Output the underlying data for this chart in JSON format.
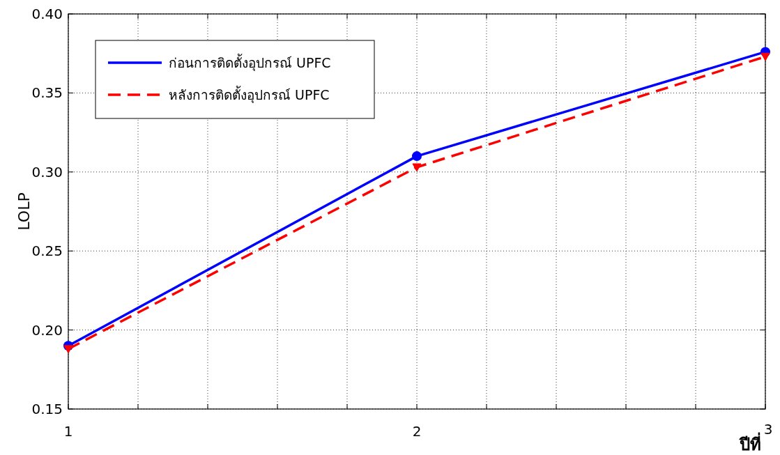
{
  "chart_data": {
    "type": "line",
    "xlabel": "ปีที่",
    "ylabel": "LOLP",
    "x": [
      1,
      2,
      3
    ],
    "series": [
      {
        "name": "ก่อนการติดตั้งอุปกรณ์ UPFC",
        "color": "#0000ff",
        "values": [
          0.19,
          0.31,
          0.376
        ],
        "marker": "circle",
        "line_style": "solid"
      },
      {
        "name": "หลังการติดตั้งอุปกรณ์ UPFC",
        "color": "#ff0000",
        "values": [
          0.188,
          0.303,
          0.373
        ],
        "marker": "triangle",
        "line_style": "dashed"
      }
    ],
    "xlim": [
      1,
      3
    ],
    "xticks": [
      1,
      {
        "value": 1.2,
        "label": null
      },
      {
        "value": 1.4,
        "label": null
      },
      {
        "value": 1.6,
        "label": null
      },
      {
        "value": 1.8,
        "label": null
      },
      2,
      {
        "value": 2.2,
        "label": null
      },
      {
        "value": 2.4,
        "label": null
      },
      {
        "value": 2.6,
        "label": null
      },
      {
        "value": 2.8,
        "label": null
      },
      3
    ],
    "ylim": [
      0.15,
      0.4
    ],
    "yticks": [
      {
        "value": 0.15,
        "label": "0.15"
      },
      {
        "value": 0.2,
        "label": "0.20"
      },
      {
        "value": 0.25,
        "label": "0.25"
      },
      {
        "value": 0.3,
        "label": "0.30"
      },
      {
        "value": 0.35,
        "label": "0.35"
      },
      {
        "value": 0.4,
        "label": "0.40"
      }
    ],
    "grid": true,
    "legend": "top left"
  }
}
